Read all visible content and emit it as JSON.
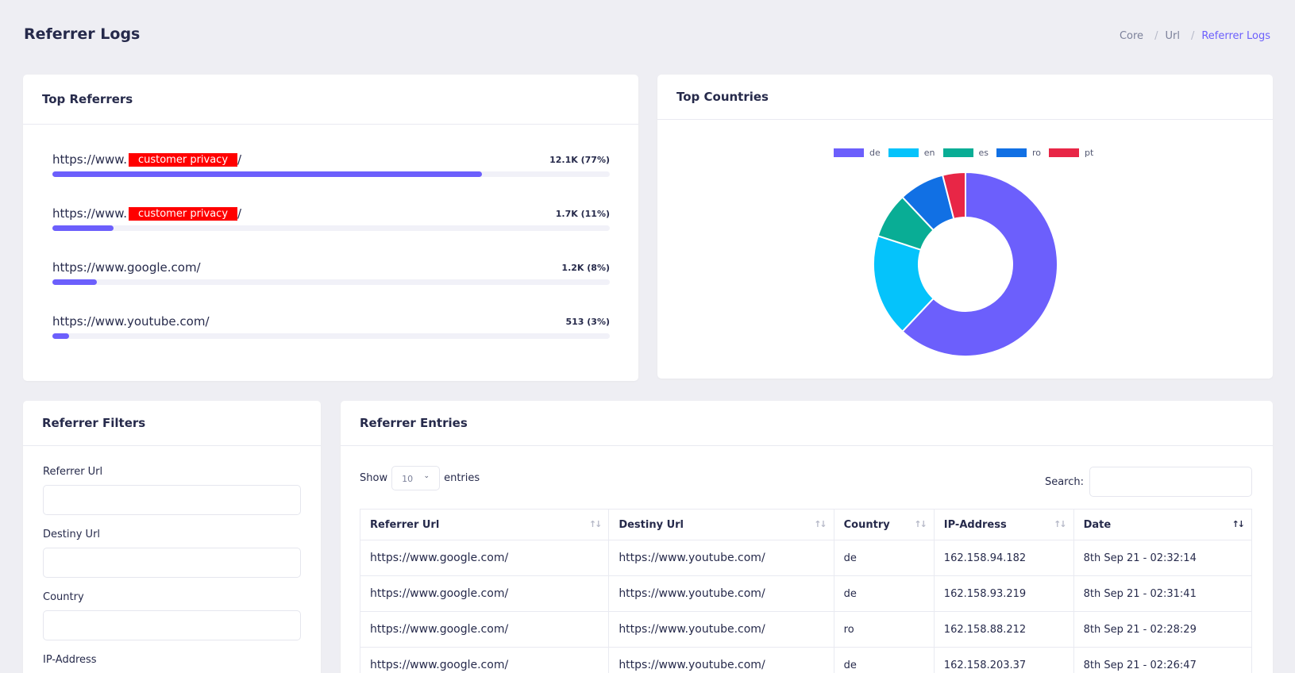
{
  "page": {
    "title": "Referrer Logs",
    "breadcrumb": [
      "Core",
      "Url",
      "Referrer Logs"
    ]
  },
  "top_referrers": {
    "title": "Top Referrers",
    "items": [
      {
        "prefix": "https://www.",
        "redacted": "customer privacy",
        "suffix": "/",
        "stat": "12.1K (77%)",
        "fraction": 0.77
      },
      {
        "prefix": "https://www.",
        "redacted": "customer privacy",
        "suffix": "/",
        "stat": "1.7K (11%)",
        "fraction": 0.11
      },
      {
        "prefix": "https://www.google.com/",
        "redacted": "",
        "suffix": "",
        "stat": "1.2K (8%)",
        "fraction": 0.08
      },
      {
        "prefix": "https://www.youtube.com/",
        "redacted": "",
        "suffix": "",
        "stat": "513 (3%)",
        "fraction": 0.03
      }
    ]
  },
  "top_countries": {
    "title": "Top Countries",
    "legend": [
      {
        "label": "de",
        "color": "#6c5ffc"
      },
      {
        "label": "en",
        "color": "#05c3fb"
      },
      {
        "label": "es",
        "color": "#09ad95"
      },
      {
        "label": "ro",
        "color": "#1170e4"
      },
      {
        "label": "pt",
        "color": "#e82646"
      }
    ]
  },
  "chart_data": {
    "type": "pie",
    "donut": true,
    "categories": [
      "de",
      "en",
      "es",
      "ro",
      "pt"
    ],
    "values": [
      62,
      18,
      8,
      8,
      4
    ],
    "colors": [
      "#6c5ffc",
      "#05c3fb",
      "#09ad95",
      "#1170e4",
      "#e82646"
    ],
    "legend_position": "top"
  },
  "filters": {
    "title": "Referrer Filters",
    "fields": [
      {
        "label": "Referrer Url",
        "value": ""
      },
      {
        "label": "Destiny Url",
        "value": ""
      },
      {
        "label": "Country",
        "value": ""
      },
      {
        "label": "IP-Address",
        "value": ""
      }
    ]
  },
  "entries": {
    "title": "Referrer Entries",
    "show_label": "Show",
    "entries_label": "entries",
    "page_length": "10",
    "search_label": "Search:",
    "columns": [
      "Referrer Url",
      "Destiny Url",
      "Country",
      "IP-Address",
      "Date"
    ],
    "rows": [
      [
        "https://www.google.com/",
        "https://www.youtube.com/",
        "de",
        "162.158.94.182",
        "8th Sep 21 - 02:32:14"
      ],
      [
        "https://www.google.com/",
        "https://www.youtube.com/",
        "de",
        "162.158.93.219",
        "8th Sep 21 - 02:31:41"
      ],
      [
        "https://www.google.com/",
        "https://www.youtube.com/",
        "ro",
        "162.158.88.212",
        "8th Sep 21 - 02:28:29"
      ],
      [
        "https://www.google.com/",
        "https://www.youtube.com/",
        "de",
        "162.158.203.37",
        "8th Sep 21 - 02:26:47"
      ]
    ]
  }
}
